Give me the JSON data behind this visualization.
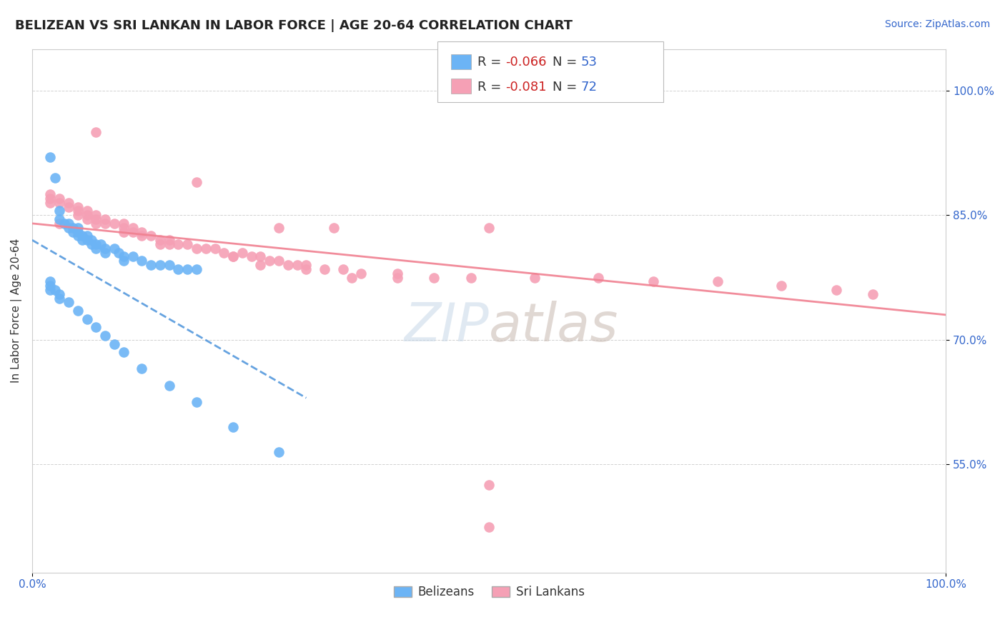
{
  "title": "BELIZEAN VS SRI LANKAN IN LABOR FORCE | AGE 20-64 CORRELATION CHART",
  "source_text": "Source: ZipAtlas.com",
  "ylabel": "In Labor Force | Age 20-64",
  "xlim": [
    0.0,
    1.0
  ],
  "ylim": [
    0.42,
    1.05
  ],
  "x_tick_labels": [
    "0.0%",
    "100.0%"
  ],
  "x_tick_positions": [
    0.0,
    1.0
  ],
  "y_tick_labels": [
    "55.0%",
    "70.0%",
    "85.0%",
    "100.0%"
  ],
  "y_tick_positions": [
    0.55,
    0.7,
    0.85,
    1.0
  ],
  "legend_r_belize": "-0.066",
  "legend_n_belize": "53",
  "legend_r_srilanka": "-0.081",
  "legend_n_srilanka": "72",
  "belize_color": "#6cb4f5",
  "srilanka_color": "#f5a0b5",
  "belize_line_color": "#5599dd",
  "srilanka_line_color": "#f08090",
  "title_fontsize": 13,
  "source_fontsize": 10,
  "axis_label_fontsize": 11,
  "tick_fontsize": 11,
  "legend_fontsize": 13,
  "belize_x": [
    0.02,
    0.025,
    0.03,
    0.03,
    0.035,
    0.04,
    0.04,
    0.045,
    0.045,
    0.05,
    0.05,
    0.05,
    0.055,
    0.055,
    0.06,
    0.06,
    0.065,
    0.065,
    0.07,
    0.07,
    0.075,
    0.08,
    0.08,
    0.09,
    0.095,
    0.1,
    0.1,
    0.11,
    0.12,
    0.13,
    0.14,
    0.15,
    0.16,
    0.17,
    0.18,
    0.02,
    0.02,
    0.02,
    0.025,
    0.03,
    0.03,
    0.04,
    0.05,
    0.06,
    0.07,
    0.08,
    0.09,
    0.1,
    0.12,
    0.15,
    0.18,
    0.22,
    0.27
  ],
  "belize_y": [
    0.92,
    0.895,
    0.845,
    0.855,
    0.84,
    0.84,
    0.835,
    0.835,
    0.83,
    0.835,
    0.83,
    0.825,
    0.825,
    0.82,
    0.825,
    0.82,
    0.82,
    0.815,
    0.815,
    0.81,
    0.815,
    0.81,
    0.805,
    0.81,
    0.805,
    0.8,
    0.795,
    0.8,
    0.795,
    0.79,
    0.79,
    0.79,
    0.785,
    0.785,
    0.785,
    0.77,
    0.765,
    0.76,
    0.76,
    0.755,
    0.75,
    0.745,
    0.735,
    0.725,
    0.715,
    0.705,
    0.695,
    0.685,
    0.665,
    0.645,
    0.625,
    0.595,
    0.565
  ],
  "srilanka_x": [
    0.07,
    0.18,
    0.03,
    0.27,
    0.33,
    0.5,
    0.02,
    0.02,
    0.02,
    0.03,
    0.03,
    0.04,
    0.04,
    0.05,
    0.05,
    0.05,
    0.06,
    0.06,
    0.06,
    0.07,
    0.07,
    0.07,
    0.08,
    0.08,
    0.09,
    0.1,
    0.1,
    0.1,
    0.11,
    0.11,
    0.12,
    0.12,
    0.13,
    0.14,
    0.14,
    0.15,
    0.15,
    0.16,
    0.17,
    0.18,
    0.19,
    0.2,
    0.21,
    0.22,
    0.23,
    0.24,
    0.25,
    0.26,
    0.27,
    0.28,
    0.29,
    0.3,
    0.32,
    0.34,
    0.36,
    0.4,
    0.44,
    0.48,
    0.55,
    0.62,
    0.68,
    0.75,
    0.82,
    0.88,
    0.22,
    0.25,
    0.3,
    0.35,
    0.4,
    0.92,
    0.5,
    0.5
  ],
  "srilanka_y": [
    0.95,
    0.89,
    0.84,
    0.835,
    0.835,
    0.835,
    0.875,
    0.87,
    0.865,
    0.87,
    0.865,
    0.865,
    0.86,
    0.86,
    0.855,
    0.85,
    0.855,
    0.85,
    0.845,
    0.85,
    0.845,
    0.84,
    0.845,
    0.84,
    0.84,
    0.84,
    0.835,
    0.83,
    0.835,
    0.83,
    0.83,
    0.825,
    0.825,
    0.82,
    0.815,
    0.82,
    0.815,
    0.815,
    0.815,
    0.81,
    0.81,
    0.81,
    0.805,
    0.8,
    0.805,
    0.8,
    0.8,
    0.795,
    0.795,
    0.79,
    0.79,
    0.79,
    0.785,
    0.785,
    0.78,
    0.78,
    0.775,
    0.775,
    0.775,
    0.775,
    0.77,
    0.77,
    0.765,
    0.76,
    0.8,
    0.79,
    0.785,
    0.775,
    0.775,
    0.755,
    0.525,
    0.475
  ]
}
